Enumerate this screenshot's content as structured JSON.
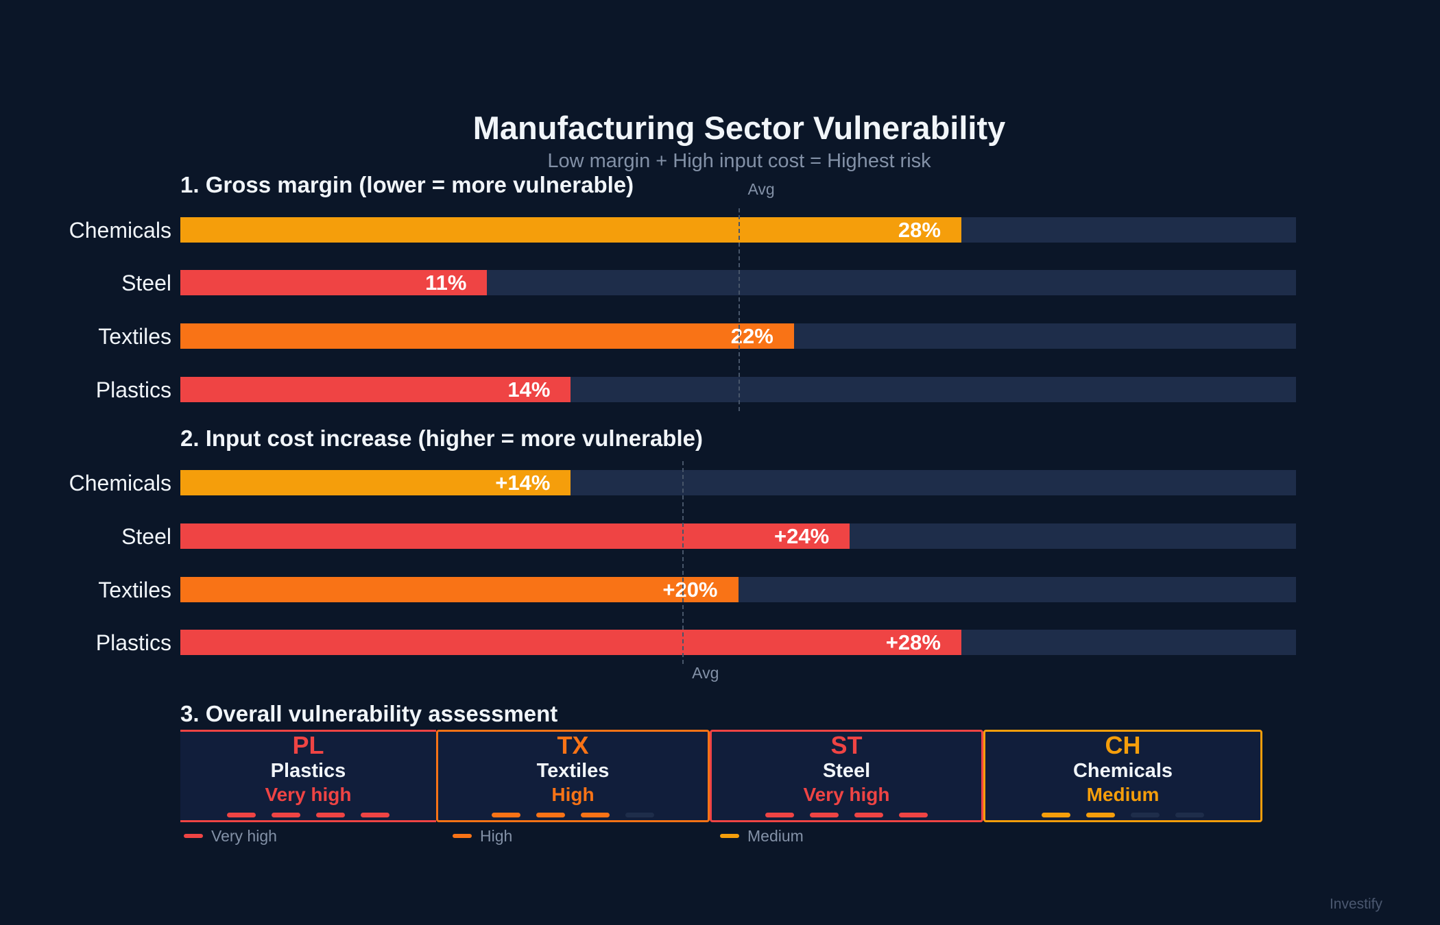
{
  "chart_data": [
    {
      "type": "bar",
      "orientation": "horizontal",
      "title": "1.  Gross margin (lower = more vulnerable)",
      "categories": [
        "Chemicals",
        "Steel",
        "Textiles",
        "Plastics"
      ],
      "values": [
        28,
        11,
        22,
        14
      ],
      "labels": [
        "28%",
        "11%",
        "22%",
        "14%"
      ],
      "colors": [
        "#f59e0b",
        "#ef4444",
        "#f97316",
        "#ef4444"
      ],
      "xlim": [
        0,
        40
      ],
      "reference_line": {
        "label": "Avg",
        "value": 20
      }
    },
    {
      "type": "bar",
      "orientation": "horizontal",
      "title": "2.  Input cost increase (higher = more vulnerable)",
      "categories": [
        "Chemicals",
        "Steel",
        "Textiles",
        "Plastics"
      ],
      "values": [
        14,
        24,
        20,
        28
      ],
      "labels": [
        "+14%",
        "+24%",
        "+20%",
        "+28%"
      ],
      "colors": [
        "#f59e0b",
        "#ef4444",
        "#f97316",
        "#ef4444"
      ],
      "xlim": [
        0,
        40
      ],
      "reference_line": {
        "label": "Avg",
        "value": 18
      }
    }
  ],
  "header": {
    "title": "Manufacturing Sector Vulnerability",
    "subtitle": "Low margin + High input cost = Highest risk"
  },
  "assessment": {
    "title": "3.  Overall vulnerability assessment",
    "cards": [
      {
        "code": "PL",
        "name": "Plastics",
        "level": "Very high",
        "score": 4,
        "max": 4,
        "color": "#ef4444"
      },
      {
        "code": "TX",
        "name": "Textiles",
        "level": "High",
        "score": 3,
        "max": 4,
        "color": "#f97316"
      },
      {
        "code": "ST",
        "name": "Steel",
        "level": "Very high",
        "score": 4,
        "max": 4,
        "color": "#ef4444"
      },
      {
        "code": "CH",
        "name": "Chemicals",
        "level": "Medium",
        "score": 2,
        "max": 4,
        "color": "#f59e0b"
      }
    ],
    "legend": [
      {
        "label": "Very high",
        "color": "#ef4444"
      },
      {
        "label": "High",
        "color": "#f97316"
      },
      {
        "label": "Medium",
        "color": "#f59e0b"
      }
    ]
  },
  "colors": {
    "background": "#0b1628",
    "track": "#1e2d4a",
    "empty_dot": "#1e2d4a"
  },
  "watermark": "Investify"
}
